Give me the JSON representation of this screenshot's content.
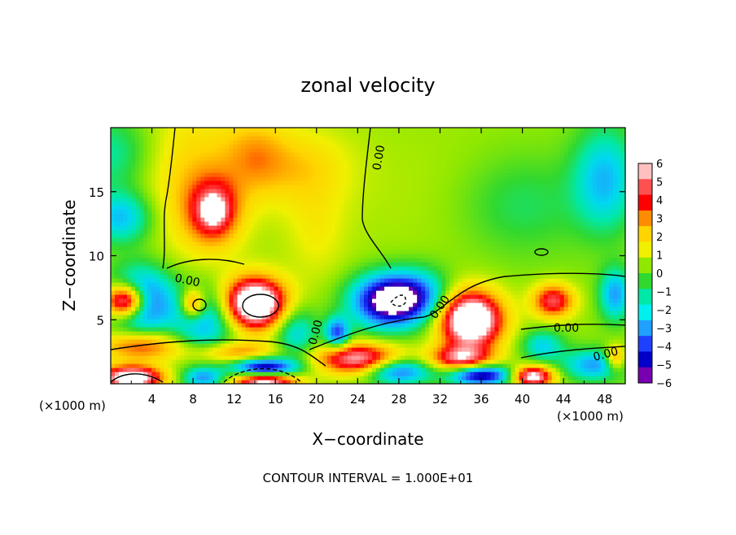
{
  "chart_data": {
    "type": "heatmap",
    "title": "zonal velocity",
    "xlabel": "X−coordinate",
    "ylabel": "Z−coordinate",
    "x_unit_left": "(×1000 m)",
    "x_unit_right": "(×1000 m)",
    "footer": "CONTOUR INTERVAL = 1.000E+01",
    "xlim": [
      0,
      50
    ],
    "ylim": [
      0,
      20
    ],
    "x_ticks": [
      4,
      8,
      12,
      16,
      20,
      24,
      28,
      32,
      36,
      40,
      44,
      48
    ],
    "y_ticks": [
      5,
      10,
      15
    ],
    "colorbar": {
      "ticks": [
        "6",
        "5",
        "4",
        "3",
        "2",
        "1",
        "0",
        "−1",
        "−2",
        "−3",
        "−4",
        "−5",
        "−6"
      ],
      "colors": [
        "#ffc0c0",
        "#ff5050",
        "#ff0000",
        "#ff8c00",
        "#ffd400",
        "#f0f000",
        "#90e800",
        "#30d830",
        "#00e8a8",
        "#00f0f0",
        "#20a0ff",
        "#2040ff",
        "#0000c8",
        "#7800b0"
      ]
    },
    "contour_labels": [
      "0.00",
      "0.00",
      "0.00",
      "0.00",
      "0.00",
      "0.00"
    ],
    "blobs": [
      {
        "x": 0,
        "z": 18,
        "sx": 4,
        "sz": 3,
        "v": -2
      },
      {
        "x": 1,
        "z": 13,
        "sx": 3,
        "sz": 2,
        "v": -3.5
      },
      {
        "x": 8,
        "z": 16,
        "sx": 5,
        "sz": 6,
        "v": 2
      },
      {
        "x": 10,
        "z": 13.5,
        "sx": 2.5,
        "sz": 2.5,
        "v": 4.5
      },
      {
        "x": 10,
        "z": 13.6,
        "sx": 0.9,
        "sz": 0.9,
        "v": 4
      },
      {
        "x": 14,
        "z": 18,
        "sx": 3,
        "sz": 3,
        "v": 1.8
      },
      {
        "x": 18,
        "z": 17,
        "sx": 5,
        "sz": 3,
        "v": 1.8
      },
      {
        "x": 20,
        "z": 12,
        "sx": 3,
        "sz": 4,
        "v": 1
      },
      {
        "x": 30,
        "z": 15,
        "sx": 14,
        "sz": 6,
        "v": 0.3
      },
      {
        "x": 40,
        "z": 14,
        "sx": 6,
        "sz": 4,
        "v": -1.5
      },
      {
        "x": 48,
        "z": 16,
        "sx": 3,
        "sz": 4,
        "v": -3.5
      },
      {
        "x": 49,
        "z": 7,
        "sx": 1.5,
        "sz": 2,
        "v": -4
      },
      {
        "x": 1.5,
        "z": 6.5,
        "sx": 2,
        "sz": 1.3,
        "v": 9
      },
      {
        "x": 3,
        "z": 6.5,
        "sx": 3,
        "sz": 2.5,
        "v": -6
      },
      {
        "x": 8,
        "z": 6.2,
        "sx": 1.2,
        "sz": 1.2,
        "v": 5
      },
      {
        "x": 9,
        "z": 5,
        "sx": 3,
        "sz": 2.5,
        "v": -4
      },
      {
        "x": 14,
        "z": 6.3,
        "sx": 3,
        "sz": 2,
        "v": 9
      },
      {
        "x": 18,
        "z": 4,
        "sx": 2,
        "sz": 2,
        "v": -3
      },
      {
        "x": 22,
        "z": 4,
        "sx": 1.2,
        "sz": 1.2,
        "v": -5
      },
      {
        "x": 27,
        "z": 6.5,
        "sx": 3.5,
        "sz": 2,
        "v": -8
      },
      {
        "x": 30,
        "z": 7,
        "sx": 3,
        "sz": 2,
        "v": -3
      },
      {
        "x": 35,
        "z": 5,
        "sx": 3,
        "sz": 2.2,
        "v": 9
      },
      {
        "x": 43,
        "z": 6.5,
        "sx": 2,
        "sz": 1.3,
        "v": 5
      },
      {
        "x": 42,
        "z": 3,
        "sx": 2,
        "sz": 1.2,
        "v": -3
      },
      {
        "x": 3,
        "z": 3,
        "sx": 4,
        "sz": 1.2,
        "v": 4
      },
      {
        "x": 12,
        "z": 2.5,
        "sx": 4,
        "sz": 0.8,
        "v": 3
      },
      {
        "x": 15,
        "z": 1.2,
        "sx": 3,
        "sz": 0.8,
        "v": -8
      },
      {
        "x": 15,
        "z": 0.3,
        "sx": 3,
        "sz": 0.8,
        "v": 8
      },
      {
        "x": 2,
        "z": 0.5,
        "sx": 3,
        "sz": 0.9,
        "v": 8
      },
      {
        "x": 9,
        "z": 0.5,
        "sx": 2,
        "sz": 0.8,
        "v": -4
      },
      {
        "x": 24,
        "z": 2,
        "sx": 4,
        "sz": 1.2,
        "v": 6
      },
      {
        "x": 28,
        "z": 1,
        "sx": 3,
        "sz": 1,
        "v": -5
      },
      {
        "x": 34,
        "z": 2,
        "sx": 3,
        "sz": 1,
        "v": 5
      },
      {
        "x": 36,
        "z": 0.7,
        "sx": 3,
        "sz": 0.8,
        "v": -7
      },
      {
        "x": 41,
        "z": 0.6,
        "sx": 2,
        "sz": 0.8,
        "v": 7
      },
      {
        "x": 47,
        "z": 1.5,
        "sx": 3,
        "sz": 1.2,
        "v": -4
      },
      {
        "x": 49,
        "z": 2,
        "sx": 1,
        "sz": 1,
        "v": 4
      }
    ]
  }
}
